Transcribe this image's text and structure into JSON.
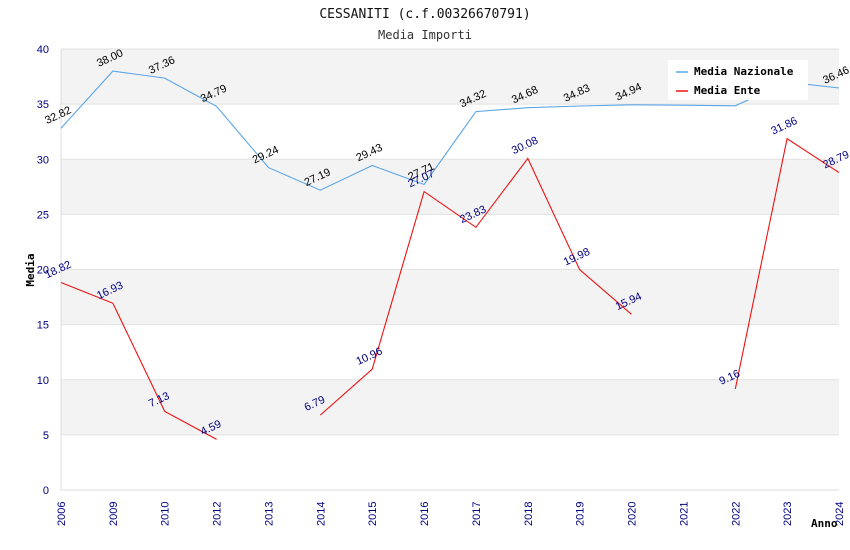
{
  "chart_data": {
    "type": "line",
    "title": "CESSANITI (c.f.00326670791)",
    "subtitle": "Media Importi",
    "xlabel": "Anno",
    "ylabel": "Media",
    "ylim": [
      0,
      40
    ],
    "yticks": [
      "0",
      "5",
      "10",
      "15",
      "20",
      "25",
      "30",
      "35",
      "40"
    ],
    "categories": [
      "2006",
      "2009",
      "2010",
      "2012",
      "2013",
      "2014",
      "2015",
      "2016",
      "2017",
      "2018",
      "2019",
      "2020",
      "2021",
      "2022",
      "2023",
      "2024"
    ],
    "grid": "horizontal bands",
    "legend_position": "top-right",
    "series": [
      {
        "name": "Media Nazionale",
        "color": "#5aa5e6",
        "values": [
          32.82,
          38.0,
          37.36,
          34.79,
          29.24,
          27.19,
          29.43,
          27.71,
          34.32,
          34.68,
          34.83,
          34.94,
          34.9,
          34.85,
          37.0,
          36.46
        ],
        "labels": [
          "32.82",
          "38.00",
          "37.36",
          "34.79",
          "29.24",
          "27.19",
          "29.43",
          "27.71",
          "34.32",
          "34.68",
          "34.83",
          "34.94",
          "",
          "",
          "",
          "36.46"
        ]
      },
      {
        "name": "Media Ente",
        "color": "#ee1111",
        "values": [
          18.82,
          16.93,
          7.13,
          4.59,
          null,
          6.79,
          10.96,
          27.07,
          23.83,
          30.08,
          19.98,
          15.94,
          null,
          9.16,
          31.86,
          28.79
        ],
        "labels": [
          "18.82",
          "16.93",
          "7.13",
          "4.59",
          "",
          "6.79",
          "10.96",
          "27.07",
          "23.83",
          "30.08",
          "19.98",
          "15.94",
          "",
          "9.16",
          "31.86",
          "28.79"
        ]
      }
    ]
  }
}
